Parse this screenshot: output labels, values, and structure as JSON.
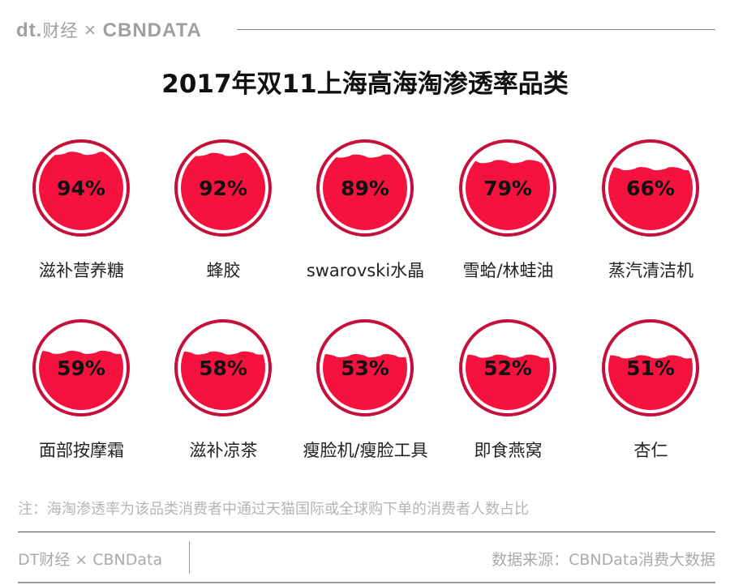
{
  "header": {
    "brand_logo": "dt财经 × CBNDATA",
    "title": "2017年双11上海高海淘渗透率品类"
  },
  "colors": {
    "fill": "#f5123f",
    "ring": "#c4103a",
    "text": "#111111"
  },
  "chart_data": {
    "type": "pie",
    "title": "2017年双11上海高海淘渗透率品类",
    "categories": [
      "滋补营养糖",
      "蜂胶",
      "swarovski水晶",
      "雪蛤/林蛙油",
      "蒸汽清洁机",
      "面部按摩霜",
      "滋补凉茶",
      "瘦脸机/瘦脸工具",
      "即食燕窝",
      "杏仁"
    ],
    "values": [
      94,
      92,
      89,
      79,
      66,
      59,
      58,
      53,
      52,
      51
    ],
    "labels": [
      "94%",
      "92%",
      "89%",
      "79%",
      "66%",
      "59%",
      "58%",
      "53%",
      "52%",
      "51%"
    ],
    "unit": "%"
  },
  "footer": {
    "note": "注：海淘渗透率为该品类消费者中通过天猫国际或全球购下单的消费者人数占比",
    "left": "DT财经 × CBNData",
    "right": "数据来源：CBNData消费大数据"
  }
}
